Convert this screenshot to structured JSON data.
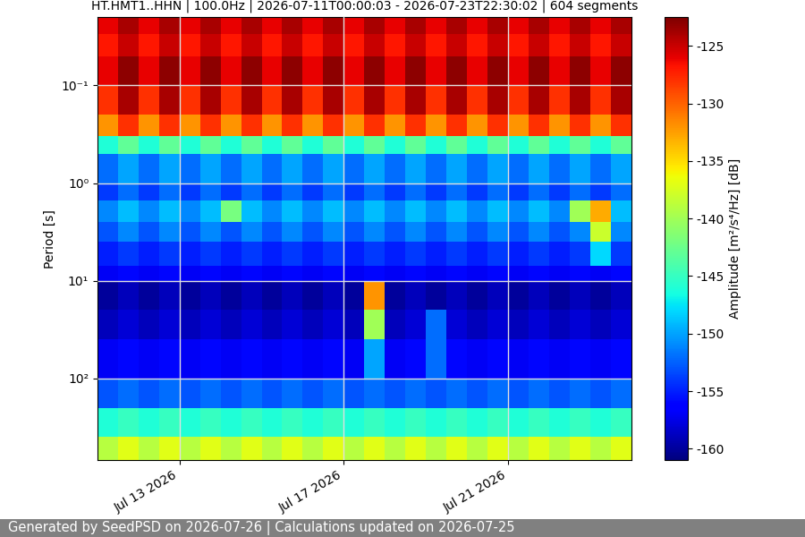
{
  "chart_data": {
    "type": "spectrogram",
    "title": "HT.HMT1..HHN | 100.0Hz | 2026-07-11T00:00:03 - 2026-07-23T22:30:02 | 604 segments",
    "y_label": "Period [s]",
    "colorbar_label": "Amplitude [m²/s⁴/Hz] [dB]",
    "footer": "Generated by SeedPSD on 2026-07-26 | Calculations updated on 2026-07-25",
    "log": "y",
    "grid": true,
    "x": [
      "2026-07-11T00:00",
      "2026-07-11T12:00",
      "2026-07-12T00:00",
      "2026-07-12T12:00",
      "2026-07-13T00:00",
      "2026-07-13T12:00",
      "2026-07-14T00:00",
      "2026-07-14T12:00",
      "2026-07-15T00:00",
      "2026-07-15T12:00",
      "2026-07-16T00:00",
      "2026-07-16T12:00",
      "2026-07-17T00:00",
      "2026-07-17T12:00",
      "2026-07-18T00:00",
      "2026-07-18T12:00",
      "2026-07-19T00:00",
      "2026-07-19T12:00",
      "2026-07-20T00:00",
      "2026-07-20T12:00",
      "2026-07-21T00:00",
      "2026-07-21T12:00",
      "2026-07-22T00:00",
      "2026-07-22T12:00",
      "2026-07-23T00:00",
      "2026-07-23T12:00",
      "2026-07-24T00:00"
    ],
    "y": [
      0.02,
      0.03,
      0.05,
      0.1,
      0.2,
      0.33,
      0.5,
      1,
      1.5,
      2.5,
      4,
      7,
      10,
      20,
      40,
      100,
      200,
      400,
      690
    ],
    "cells": [
      [
        -126,
        -124,
        -126,
        -124,
        -126,
        -124,
        -126,
        -124,
        -126,
        -124,
        -126,
        -124,
        -126,
        -124,
        -126,
        -124,
        -126,
        -124,
        -126,
        -124,
        -126,
        -124,
        -126,
        -124,
        -126,
        -124
      ],
      [
        -127,
        -125,
        -127,
        -125,
        -127,
        -125,
        -127,
        -125,
        -127,
        -125,
        -127,
        -125,
        -127,
        -125,
        -127,
        -125,
        -127,
        -125,
        -127,
        -125,
        -127,
        -125,
        -127,
        -125,
        -127,
        -125
      ],
      [
        -126,
        -123,
        -126,
        -123,
        -126,
        -123,
        -126,
        -123,
        -126,
        -123,
        -126,
        -123,
        -126,
        -123,
        -126,
        -123,
        -126,
        -123,
        -126,
        -123,
        -126,
        -123,
        -126,
        -123,
        -126,
        -123
      ],
      [
        -128,
        -124,
        -128,
        -124,
        -128,
        -124,
        -128,
        -124,
        -128,
        -124,
        -128,
        -124,
        -128,
        -124,
        -128,
        -124,
        -128,
        -124,
        -128,
        -124,
        -128,
        -124,
        -128,
        -124,
        -128,
        -124
      ],
      [
        -132,
        -128,
        -132,
        -128,
        -132,
        -128,
        -132,
        -128,
        -132,
        -128,
        -132,
        -128,
        -132,
        -128,
        -132,
        -128,
        -132,
        -128,
        -132,
        -128,
        -132,
        -128,
        -132,
        -128,
        -132,
        -128
      ],
      [
        -146,
        -143,
        -146,
        -143,
        -146,
        -143,
        -146,
        -143,
        -146,
        -143,
        -146,
        -143,
        -146,
        -143,
        -146,
        -143,
        -146,
        -143,
        -146,
        -143,
        -146,
        -143,
        -146,
        -143,
        -146,
        -143
      ],
      [
        -152,
        -150,
        -152,
        -150,
        -152,
        -150,
        -152,
        -150,
        -152,
        -150,
        -152,
        -150,
        -152,
        -150,
        -152,
        -150,
        -152,
        -150,
        -152,
        -150,
        -152,
        -150,
        -152,
        -150,
        -152,
        -150
      ],
      [
        -154,
        -152,
        -154,
        -152,
        -154,
        -152,
        -154,
        -152,
        -154,
        -152,
        -154,
        -152,
        -154,
        -152,
        -154,
        -152,
        -154,
        -152,
        -154,
        -152,
        -154,
        -152,
        -154,
        -152,
        -154,
        -152
      ],
      [
        -151,
        -149,
        -151,
        -149,
        -151,
        -149,
        -142,
        -149,
        -151,
        -149,
        -151,
        -149,
        -151,
        -149,
        -151,
        -149,
        -151,
        -149,
        -151,
        -149,
        -151,
        -149,
        -151,
        -140,
        -133,
        -149
      ],
      [
        -153,
        -151,
        -153,
        -151,
        -153,
        -151,
        -153,
        -151,
        -153,
        -151,
        -153,
        -151,
        -153,
        -151,
        -153,
        -151,
        -153,
        -151,
        -153,
        -151,
        -153,
        -151,
        -153,
        -151,
        -138,
        -151
      ],
      [
        -155,
        -154,
        -155,
        -154,
        -155,
        -154,
        -155,
        -154,
        -155,
        -154,
        -155,
        -154,
        -155,
        -154,
        -155,
        -154,
        -155,
        -154,
        -155,
        -154,
        -155,
        -154,
        -155,
        -154,
        -148,
        -154
      ],
      [
        -157,
        -156,
        -157,
        -156,
        -157,
        -156,
        -157,
        -156,
        -157,
        -156,
        -157,
        -156,
        -157,
        -156,
        -157,
        -156,
        -157,
        -156,
        -157,
        -156,
        -157,
        -156,
        -157,
        -156,
        -157,
        -156
      ],
      [
        -160,
        -159,
        -160,
        -159,
        -160,
        -159,
        -160,
        -159,
        -160,
        -159,
        -160,
        -159,
        -160,
        -132,
        -160,
        -159,
        -160,
        -159,
        -160,
        -159,
        -160,
        -159,
        -160,
        -159,
        -160,
        -159
      ],
      [
        -159,
        -158,
        -159,
        -158,
        -159,
        -158,
        -159,
        -158,
        -159,
        -158,
        -159,
        -158,
        -159,
        -140,
        -159,
        -158,
        -152,
        -158,
        -159,
        -158,
        -159,
        -158,
        -159,
        -158,
        -159,
        -158
      ],
      [
        -157,
        -156,
        -157,
        -156,
        -157,
        -156,
        -157,
        -156,
        -157,
        -156,
        -157,
        -156,
        -157,
        -150,
        -157,
        -156,
        -152,
        -156,
        -157,
        -156,
        -157,
        -156,
        -157,
        -156,
        -157,
        -156
      ],
      [
        -153,
        -152,
        -153,
        -152,
        -153,
        -152,
        -153,
        -152,
        -153,
        -152,
        -153,
        -152,
        -153,
        -152,
        -153,
        -152,
        -153,
        -152,
        -153,
        -152,
        -153,
        -152,
        -153,
        -152,
        -153,
        -152
      ],
      [
        -146,
        -145,
        -146,
        -145,
        -146,
        -145,
        -146,
        -145,
        -146,
        -145,
        -146,
        -145,
        -146,
        -145,
        -146,
        -145,
        -146,
        -145,
        -146,
        -145,
        -146,
        -145,
        -146,
        -145,
        -146,
        -145
      ],
      [
        -139,
        -137,
        -139,
        -137,
        -139,
        -137,
        -139,
        -137,
        -139,
        -137,
        -139,
        -137,
        -139,
        -137,
        -139,
        -137,
        -139,
        -137,
        -139,
        -137,
        -139,
        -137,
        -139,
        -137,
        -139,
        -137
      ]
    ],
    "xlim": [
      "2026-07-11",
      "2026-07-24"
    ],
    "xticks": [
      {
        "value": "2026-07-13",
        "label": "Jul 13 2026"
      },
      {
        "value": "2026-07-17",
        "label": "Jul 17 2026"
      },
      {
        "value": "2026-07-21",
        "label": "Jul 21 2026"
      }
    ],
    "ylim": [
      690,
      0.02
    ],
    "yticks": [
      {
        "value": 0.1,
        "label": "10⁻¹"
      },
      {
        "value": 1,
        "label": "10⁰"
      },
      {
        "value": 10,
        "label": "10¹"
      },
      {
        "value": 100,
        "label": "10²"
      }
    ],
    "clim": [
      -161,
      -122.5
    ],
    "cticks": [
      -125,
      -130,
      -135,
      -140,
      -145,
      -150,
      -155,
      -160
    ]
  }
}
